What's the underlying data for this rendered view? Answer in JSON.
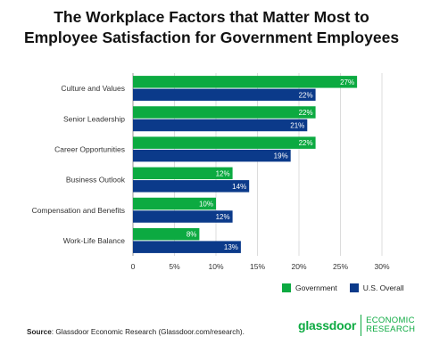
{
  "title_line1": "The Workplace Factors that Matter Most to",
  "title_line2": "Employee Satisfaction for Government Employees",
  "source_label": "Source",
  "source_text": ": Glassdoor Economic Research (Glassdoor.com/research).",
  "brand": {
    "name": "glassdoor",
    "sub1": "ECONOMIC",
    "sub2": "RESEARCH"
  },
  "colors": {
    "government": "#0caa41",
    "overall": "#0b3a8a",
    "grid": "#dcdcdc",
    "brand": "#0caa41"
  },
  "chart_data": {
    "type": "bar",
    "orientation": "horizontal",
    "categories": [
      "Culture and Values",
      "Senior Leadership",
      "Career Opportunities",
      "Business Outlook",
      "Compensation and Benefits",
      "Work-Life Balance"
    ],
    "series": [
      {
        "name": "Government",
        "values": [
          27,
          22,
          22,
          12,
          10,
          8
        ],
        "labels": [
          "27%",
          "22%",
          "22%",
          "12%",
          "10%",
          "8%"
        ]
      },
      {
        "name": "U.S. Overall",
        "values": [
          22,
          21,
          19,
          14,
          12,
          13
        ],
        "labels": [
          "22%",
          "21%",
          "19%",
          "14%",
          "12%",
          "13%"
        ]
      }
    ],
    "xlim": [
      0,
      30
    ],
    "xticks": [
      "0",
      "5%",
      "10%",
      "15%",
      "20%",
      "25%",
      "30%"
    ],
    "grid": true,
    "legend": "bottom-right"
  }
}
